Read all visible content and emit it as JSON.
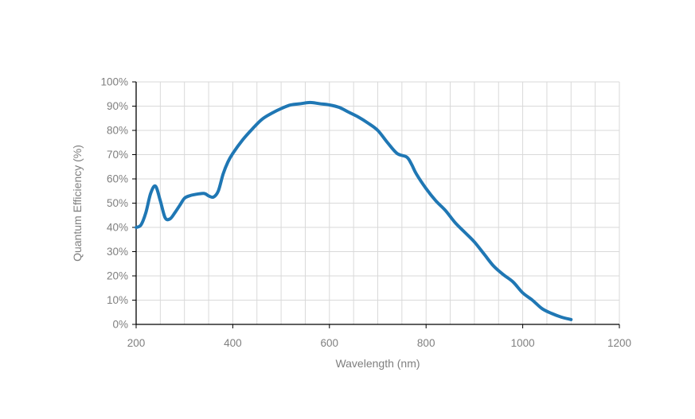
{
  "chart_data": {
    "type": "line",
    "title": "",
    "xlabel": "Wavelength (nm)",
    "ylabel": "Quantum Efficiency (%)",
    "xlim": [
      200,
      1200
    ],
    "ylim": [
      0,
      100
    ],
    "x_ticks": [
      "200",
      "400",
      "600",
      "800",
      "1000",
      "1200"
    ],
    "y_ticks": [
      "0%",
      "10%",
      "20%",
      "30%",
      "40%",
      "50%",
      "60%",
      "70%",
      "80%",
      "90%",
      "100%"
    ],
    "grid": true,
    "legend": "none",
    "line_color": "#1f77b4",
    "series": [
      {
        "x": [
          200,
          210,
          220,
          230,
          240,
          250,
          260,
          270,
          280,
          290,
          300,
          310,
          320,
          340,
          350,
          360,
          370,
          380,
          390,
          400,
          420,
          440,
          460,
          480,
          500,
          520,
          540,
          560,
          580,
          600,
          620,
          640,
          660,
          680,
          700,
          720,
          740,
          760,
          770,
          780,
          800,
          820,
          840,
          860,
          880,
          900,
          920,
          940,
          960,
          980,
          1000,
          1020,
          1040,
          1060,
          1080,
          1100
        ],
        "y": [
          40,
          41,
          46,
          54,
          57,
          51,
          44,
          43.5,
          46,
          49,
          52,
          53,
          53.5,
          54,
          53,
          52.5,
          55,
          62,
          67,
          70.5,
          76,
          80.5,
          84.5,
          87,
          89,
          90.5,
          91,
          91.5,
          91,
          90.5,
          89.5,
          87.5,
          85.5,
          83,
          80,
          75,
          70.5,
          69,
          66,
          62,
          56,
          51,
          47,
          42,
          38,
          34,
          29,
          24,
          20.5,
          17.5,
          13,
          10,
          6.5,
          4.5,
          3,
          2
        ]
      }
    ]
  }
}
